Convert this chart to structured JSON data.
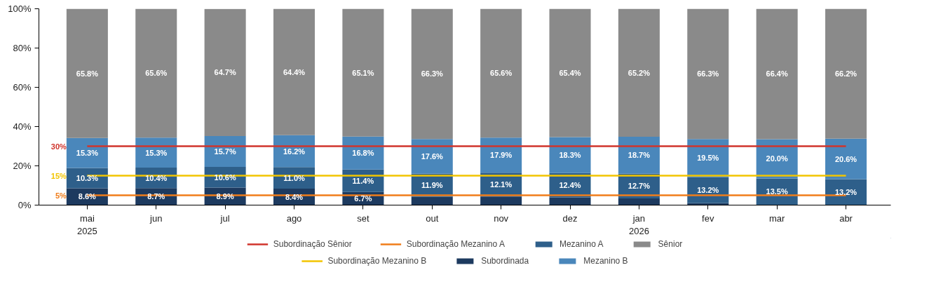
{
  "chart_data": {
    "type": "bar",
    "stacked": true,
    "categories": [
      "mai\n2025",
      "jun",
      "jul",
      "ago",
      "set",
      "out",
      "nov",
      "dez",
      "jan\n2026",
      "fev",
      "mar",
      "abr"
    ],
    "ylim": [
      0,
      100
    ],
    "yticks": [
      {
        "value": 0,
        "label": "0%"
      },
      {
        "value": 20,
        "label": "20%"
      },
      {
        "value": 40,
        "label": "40%"
      },
      {
        "value": 60,
        "label": "60%"
      },
      {
        "value": 80,
        "label": "80%"
      },
      {
        "value": 100,
        "label": "100%"
      }
    ],
    "grid": false,
    "legend": "bottom",
    "series": [
      {
        "name": "Subordinação Sênior",
        "type": "line",
        "color": "#d0342c",
        "values": [
          30,
          30,
          30,
          30,
          30,
          30,
          30,
          30,
          30,
          30,
          30,
          30
        ]
      },
      {
        "name": "Subordinação Mezanino B",
        "type": "line",
        "color": "#f2c500",
        "values": [
          15,
          15,
          15,
          15,
          15,
          15,
          15,
          15,
          15,
          15,
          15,
          15
        ]
      },
      {
        "name": "Subordinação Mezanino A",
        "type": "line",
        "color": "#f07d1a",
        "values": [
          5,
          5,
          5,
          5,
          5,
          5,
          5,
          5,
          5,
          5,
          5,
          5
        ]
      },
      {
        "name": "Subordinada",
        "color": "#1d3a5f",
        "values": [
          8.6,
          8.7,
          8.9,
          8.4,
          6.7,
          4.2,
          4.4,
          3.9,
          3.4,
          1.0,
          0.1,
          0.0
        ],
        "value_labels": [
          "8.6%",
          "8.7%",
          "8.9%",
          "8.4%",
          "6.7%",
          null,
          null,
          null,
          null,
          null,
          null,
          null
        ]
      },
      {
        "name": "Mezanino A",
        "color": "#2e5f8a",
        "values": [
          10.3,
          10.4,
          10.6,
          11.0,
          11.4,
          11.9,
          12.1,
          12.4,
          12.7,
          13.2,
          13.5,
          13.2
        ],
        "value_labels": [
          "10.3%",
          "10.4%",
          "10.6%",
          "11.0%",
          "11.4%",
          "11.9%",
          "12.1%",
          "12.4%",
          "12.7%",
          "13.2%",
          "13.5%",
          "13.2%"
        ]
      },
      {
        "name": "Mezanino B",
        "color": "#4a87bb",
        "values": [
          15.3,
          15.3,
          15.7,
          16.2,
          16.8,
          17.6,
          17.9,
          18.3,
          18.7,
          19.5,
          20.0,
          20.6
        ],
        "value_labels": [
          "15.3%",
          "15.3%",
          "15.7%",
          "16.2%",
          "16.8%",
          "17.6%",
          "17.9%",
          "18.3%",
          "18.7%",
          "19.5%",
          "20.0%",
          "20.6%"
        ]
      },
      {
        "name": "Sênior",
        "color": "#8a8a8a",
        "values": [
          65.8,
          65.6,
          64.7,
          64.4,
          65.1,
          66.3,
          65.6,
          65.4,
          65.2,
          66.3,
          66.4,
          66.2
        ],
        "value_labels": [
          "65.8%",
          "65.6%",
          "64.7%",
          "64.4%",
          "65.1%",
          "66.3%",
          "65.6%",
          "65.4%",
          "65.2%",
          "66.3%",
          "66.4%",
          "66.2%"
        ]
      }
    ],
    "annotations": [
      "30%",
      "15%",
      "5%"
    ]
  }
}
